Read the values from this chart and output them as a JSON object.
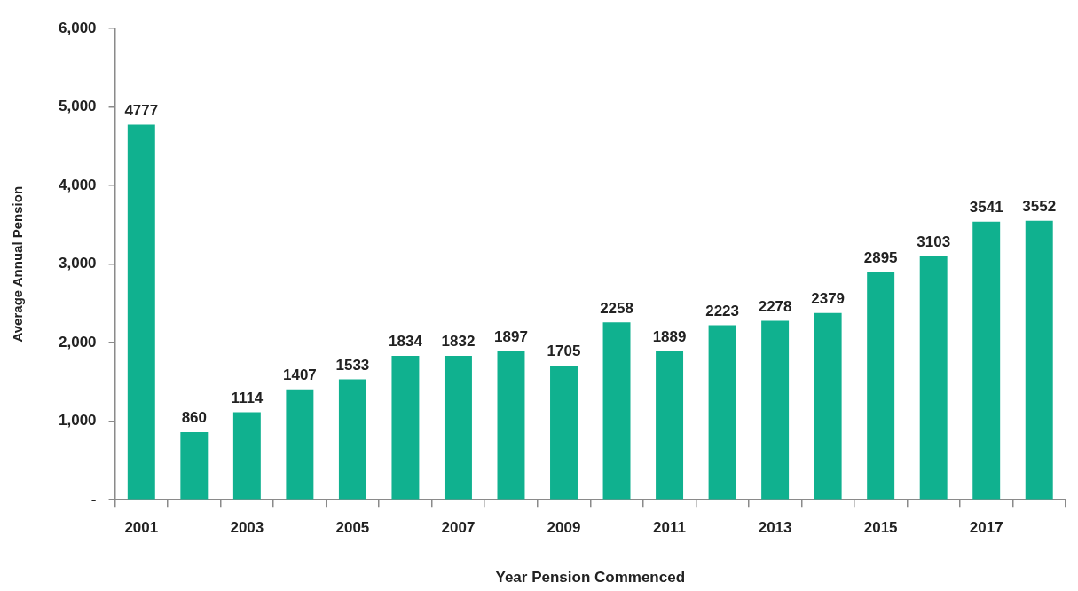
{
  "chart_data": {
    "type": "bar",
    "xlabel": "Year Pension Commenced",
    "ylabel": "Average Annual Pension",
    "categories": [
      "2001",
      null,
      "2003",
      null,
      "2005",
      null,
      "2007",
      null,
      "2009",
      null,
      "2011",
      null,
      "2013",
      null,
      "2015",
      null,
      "2017",
      null
    ],
    "values": [
      4777,
      860,
      1114,
      1407,
      1533,
      1834,
      1832,
      1897,
      1705,
      2258,
      1889,
      2223,
      2278,
      2379,
      2895,
      3103,
      3541,
      3552
    ],
    "color": "#10b18f",
    "ylim": [
      0,
      6000
    ],
    "yticks": [
      {
        "value": 0,
        "label": "-"
      },
      {
        "value": 1000,
        "label": "1,000"
      },
      {
        "value": 2000,
        "label": "2,000"
      },
      {
        "value": 3000,
        "label": "3,000"
      },
      {
        "value": 4000,
        "label": "4,000"
      },
      {
        "value": 5000,
        "label": "5,000"
      },
      {
        "value": 6000,
        "label": "6,000"
      }
    ],
    "data_labels": true,
    "grid": false,
    "legend": false
  }
}
